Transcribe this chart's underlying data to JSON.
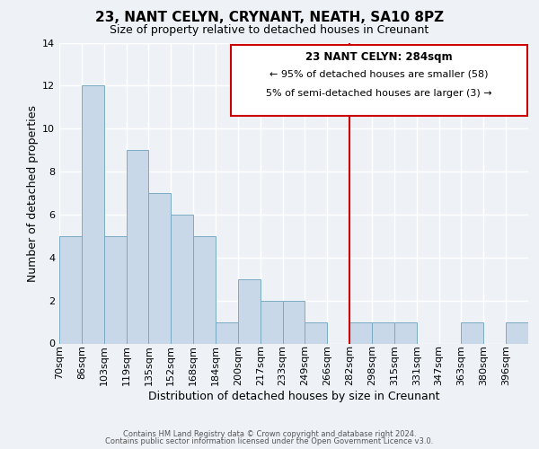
{
  "title": "23, NANT CELYN, CRYNANT, NEATH, SA10 8PZ",
  "subtitle": "Size of property relative to detached houses in Creunant",
  "xlabel": "Distribution of detached houses by size in Creunant",
  "ylabel": "Number of detached properties",
  "bin_labels": [
    "70sqm",
    "86sqm",
    "103sqm",
    "119sqm",
    "135sqm",
    "152sqm",
    "168sqm",
    "184sqm",
    "200sqm",
    "217sqm",
    "233sqm",
    "249sqm",
    "266sqm",
    "282sqm",
    "298sqm",
    "315sqm",
    "331sqm",
    "347sqm",
    "363sqm",
    "380sqm",
    "396sqm"
  ],
  "bar_heights": [
    5,
    12,
    5,
    9,
    7,
    6,
    5,
    1,
    3,
    2,
    2,
    1,
    0,
    1,
    1,
    1,
    0,
    0,
    1,
    0,
    1
  ],
  "bar_color": "#c8d8e8",
  "bar_edgecolor": "#7aaac4",
  "highlight_line_color": "#cc0000",
  "highlight_bar_index": 13,
  "ylim": [
    0,
    14
  ],
  "yticks": [
    0,
    2,
    4,
    6,
    8,
    10,
    12,
    14
  ],
  "annotation_title": "23 NANT CELYN: 284sqm",
  "annotation_line1": "← 95% of detached houses are smaller (58)",
  "annotation_line2": "5% of semi-detached houses are larger (3) →",
  "annotation_box_facecolor": "#ffffff",
  "annotation_box_edgecolor": "#cc0000",
  "footer_line1": "Contains HM Land Registry data © Crown copyright and database right 2024.",
  "footer_line2": "Contains public sector information licensed under the Open Government Licence v3.0.",
  "background_color": "#eef2f7",
  "grid_color": "#ffffff",
  "title_fontsize": 11,
  "subtitle_fontsize": 9,
  "axis_label_fontsize": 9,
  "tick_fontsize": 8
}
